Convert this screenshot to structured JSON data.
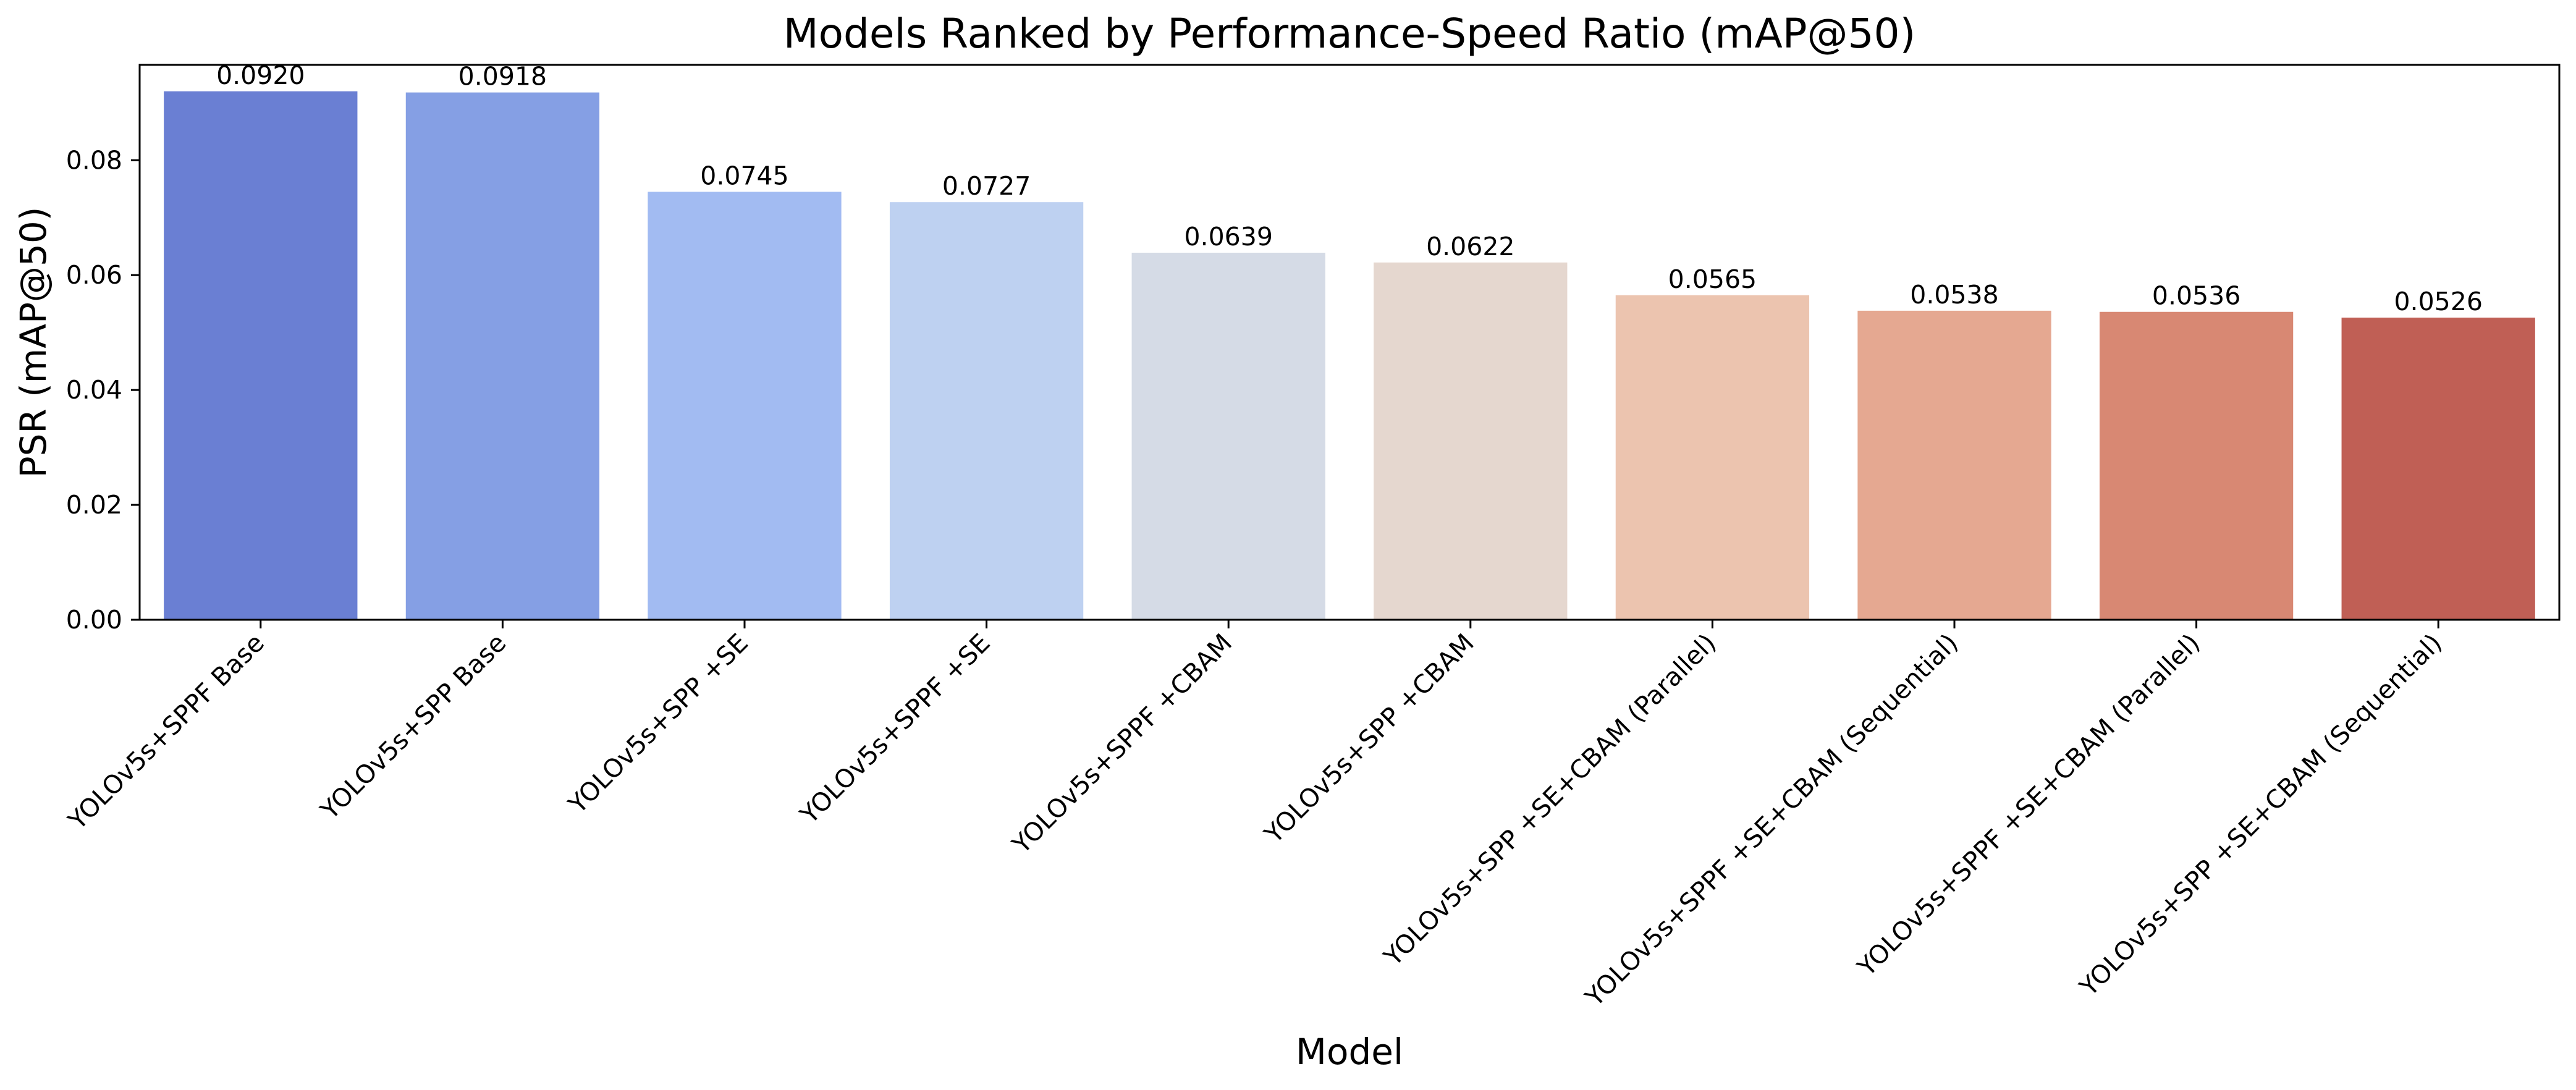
{
  "chart_data": {
    "type": "bar",
    "title": "Models Ranked by Performance-Speed Ratio (mAP@50)",
    "xlabel": "Model",
    "ylabel": "PSR (mAP@50)",
    "ylim": [
      0,
      0.0966
    ],
    "yticks": [
      0.0,
      0.02,
      0.04,
      0.06,
      0.08
    ],
    "ytick_labels": [
      "0.00",
      "0.02",
      "0.04",
      "0.06",
      "0.08"
    ],
    "grid": false,
    "categories": [
      "YOLOv5s+SPPF Base",
      "YOLOv5s+SPP Base",
      "YOLOv5s+SPP +SE",
      "YOLOv5s+SPPF +SE",
      "YOLOv5s+SPPF +CBAM",
      "YOLOv5s+SPP +CBAM",
      "YOLOv5s+SPP +SE+CBAM (Parallel)",
      "YOLOv5s+SPPF +SE+CBAM (Sequential)",
      "YOLOv5s+SPPF +SE+CBAM (Parallel)",
      "YOLOv5s+SPP +SE+CBAM (Sequential)"
    ],
    "values": [
      0.092,
      0.0918,
      0.0745,
      0.0727,
      0.0639,
      0.0622,
      0.0565,
      0.0538,
      0.0536,
      0.0526
    ],
    "value_labels": [
      "0.0920",
      "0.0918",
      "0.0745",
      "0.0727",
      "0.0639",
      "0.0622",
      "0.0565",
      "0.0538",
      "0.0536",
      "0.0526"
    ],
    "colors": [
      "#6a7fd3",
      "#859fe4",
      "#a2bbf2",
      "#bed1f1",
      "#d5dbe6",
      "#e5d7cf",
      "#ecc4af",
      "#e5a891",
      "#d88873",
      "#c05f55"
    ]
  }
}
